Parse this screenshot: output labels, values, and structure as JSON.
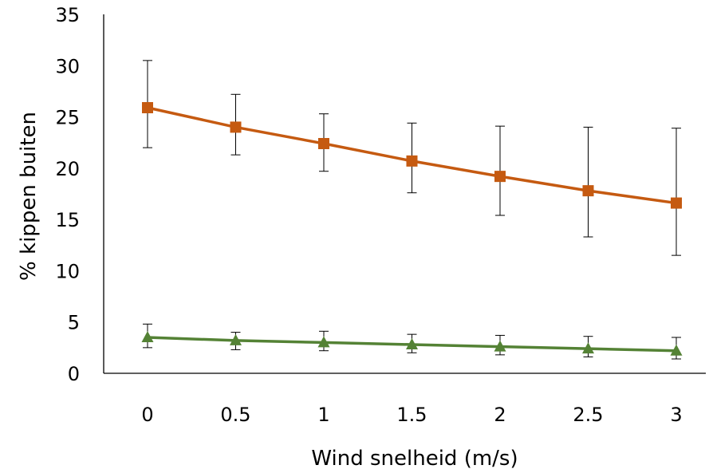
{
  "chart_data": {
    "type": "line",
    "title": "",
    "xlabel": "Wind snelheid (m/s)",
    "ylabel": "% kippen buiten",
    "x": [
      0,
      0.5,
      1,
      1.5,
      2,
      2.5,
      3
    ],
    "x_tick_labels": [
      "0",
      "0.5",
      "1",
      "1.5",
      "2",
      "2.5",
      "3"
    ],
    "ylim": [
      0,
      35
    ],
    "y_ticks": [
      0,
      5,
      10,
      15,
      20,
      25,
      30,
      35
    ],
    "grid": false,
    "legend": "none",
    "series": [
      {
        "color": "#C55A11",
        "marker": "square",
        "values": [
          25.9,
          24.0,
          22.4,
          20.7,
          19.2,
          17.8,
          16.6
        ],
        "error_upper": [
          30.5,
          27.2,
          25.3,
          24.4,
          24.1,
          24.0,
          23.9
        ],
        "error_lower": [
          22.0,
          21.3,
          19.7,
          17.6,
          15.4,
          13.3,
          11.5
        ]
      },
      {
        "color": "#548235",
        "marker": "triangle",
        "values": [
          3.5,
          3.2,
          3.0,
          2.8,
          2.6,
          2.4,
          2.2
        ],
        "error_upper": [
          4.8,
          4.0,
          4.1,
          3.8,
          3.7,
          3.6,
          3.5
        ],
        "error_lower": [
          2.5,
          2.3,
          2.2,
          2.0,
          1.8,
          1.6,
          1.4
        ]
      }
    ]
  }
}
